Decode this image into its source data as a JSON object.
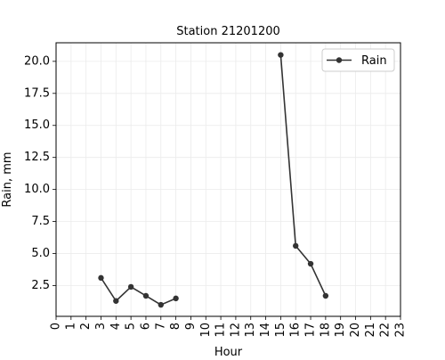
{
  "chart_data": {
    "type": "line",
    "title": "Station 21201200",
    "xlabel": "Hour",
    "ylabel": "Rain, mm",
    "xlim": [
      0,
      23
    ],
    "ylim": [
      0.1,
      21.45
    ],
    "x_ticks": [
      0,
      1,
      2,
      3,
      4,
      5,
      6,
      7,
      8,
      9,
      10,
      11,
      12,
      13,
      14,
      15,
      16,
      17,
      18,
      19,
      20,
      21,
      22,
      23
    ],
    "y_ticks": [
      2.5,
      5.0,
      7.5,
      10.0,
      12.5,
      15.0,
      17.5,
      20.0
    ],
    "y_tick_labels": [
      "2.5",
      "5.0",
      "7.5",
      "10.0",
      "12.5",
      "15.0",
      "17.5",
      "20.0"
    ],
    "grid": true,
    "legend_position": "top-right",
    "series": [
      {
        "name": "Rain",
        "color": "#333333",
        "marker": "circle",
        "segments": [
          {
            "x": [
              3,
              4,
              5,
              6,
              7,
              8
            ],
            "y": [
              3.1,
              1.3,
              2.4,
              1.7,
              1.0,
              1.5
            ]
          },
          {
            "x": [
              15,
              16,
              17,
              18
            ],
            "y": [
              20.5,
              5.6,
              4.2,
              1.7
            ]
          }
        ]
      }
    ]
  }
}
